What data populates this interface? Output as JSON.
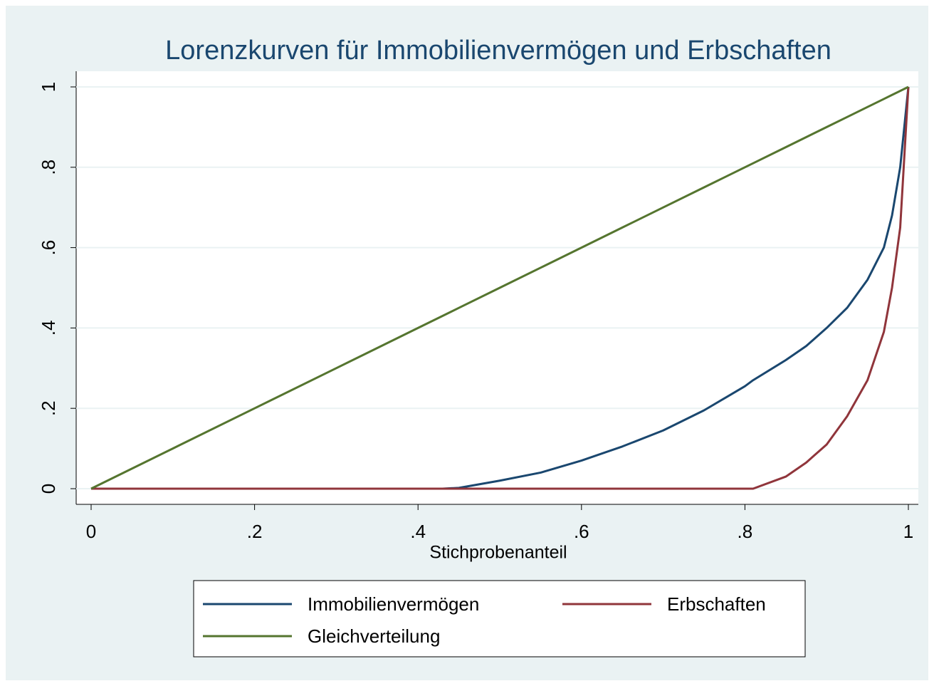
{
  "chart_data": {
    "type": "line",
    "title": "Lorenzkurven für Immobilienvermögen und Erbschaften",
    "x_label": "Stichprobenanteil",
    "x": [
      0,
      0.1,
      0.2,
      0.3,
      0.4,
      0.43,
      0.45,
      0.5,
      0.55,
      0.6,
      0.65,
      0.7,
      0.75,
      0.8,
      0.81,
      0.85,
      0.875,
      0.9,
      0.925,
      0.95,
      0.97,
      0.98,
      0.99,
      1
    ],
    "series": [
      {
        "name": "Immobilienvermögen",
        "color": "#1a476f",
        "values": [
          0,
          0,
          0,
          0,
          0,
          0,
          0.002,
          0.02,
          0.04,
          0.07,
          0.105,
          0.145,
          0.195,
          0.255,
          0.27,
          0.32,
          0.355,
          0.4,
          0.45,
          0.52,
          0.6,
          0.68,
          0.8,
          1
        ]
      },
      {
        "name": "Erbschaften",
        "color": "#90353b",
        "values": [
          0,
          0,
          0,
          0,
          0,
          0,
          0,
          0,
          0,
          0,
          0,
          0,
          0,
          0,
          0,
          0.03,
          0.065,
          0.11,
          0.18,
          0.27,
          0.39,
          0.5,
          0.65,
          1
        ]
      },
      {
        "name": "Gleichverteilung",
        "color": "#55752f",
        "values": [
          0,
          0.1,
          0.2,
          0.3,
          0.4,
          0.43,
          0.45,
          0.5,
          0.55,
          0.6,
          0.65,
          0.7,
          0.75,
          0.8,
          0.81,
          0.85,
          0.875,
          0.9,
          0.925,
          0.95,
          0.97,
          0.98,
          0.99,
          1
        ]
      }
    ],
    "xlim": [
      0,
      1
    ],
    "ylim": [
      0,
      1
    ],
    "xticks": [
      0,
      {
        "value": 0.2,
        "label": ".2"
      },
      {
        "value": 0.4,
        "label": ".4"
      },
      {
        "value": 0.6,
        "label": ".6"
      },
      {
        "value": 0.8,
        "label": ".8"
      },
      1
    ],
    "yticks": [
      0,
      {
        "value": 0.2,
        "label": ".2"
      },
      {
        "value": 0.4,
        "label": ".4"
      },
      {
        "value": 0.6,
        "label": ".6"
      },
      {
        "value": 0.8,
        "label": ".8"
      },
      1
    ],
    "grid": true,
    "legend": "bottom"
  }
}
